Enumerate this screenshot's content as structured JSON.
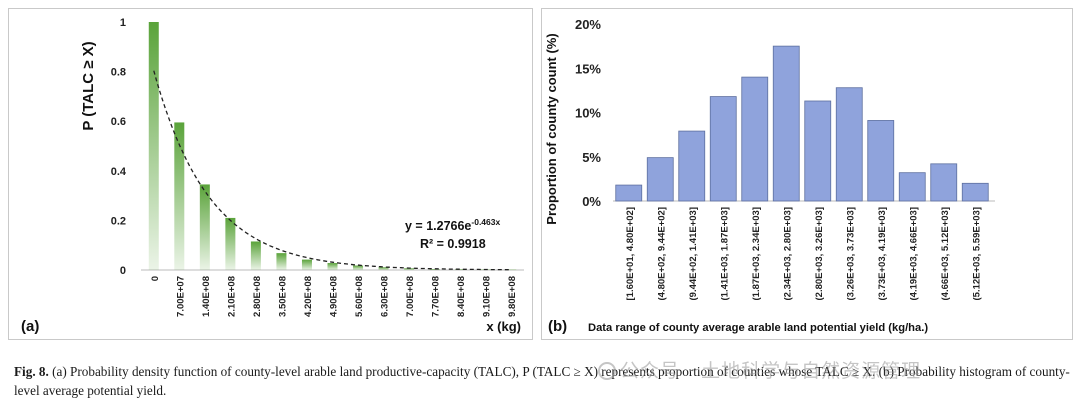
{
  "chart_data": [
    {
      "panel": "(a)",
      "type": "bar",
      "ylabel": "P (TALC ≥ X)",
      "xlabel": "x (kg)",
      "ylim": [
        0,
        1
      ],
      "yticks": [
        "0",
        "0.2",
        "0.4",
        "0.6",
        "0.8",
        "1"
      ],
      "categories": [
        "0",
        "7.00E+07",
        "1.40E+08",
        "2.10E+08",
        "2.80E+08",
        "3.50E+08",
        "4.20E+08",
        "4.90E+08",
        "5.60E+08",
        "6.30E+08",
        "7.00E+08",
        "7.70E+08",
        "8.40E+08",
        "9.10E+08",
        "9.80E+08"
      ],
      "values": [
        1.0,
        0.595,
        0.345,
        0.21,
        0.115,
        0.068,
        0.042,
        0.028,
        0.018,
        0.011,
        0.007,
        0.004,
        0.003,
        0.002,
        0.001
      ],
      "fit": {
        "coefficient": 1.2766,
        "exponent": -0.463,
        "equation": "y = 1.2766e",
        "equation_exp": "-0.463x",
        "r2": "R² = 0.9918"
      },
      "bar_color": "#5aa33a"
    },
    {
      "panel": "(b)",
      "type": "bar",
      "ylabel": "Proportion of county count (%)",
      "xlabel": "Data range of county average arable land potential yield (kg/ha.)",
      "ylim": [
        0,
        20
      ],
      "yticks": [
        "0%",
        "5%",
        "10%",
        "15%",
        "20%"
      ],
      "categories": [
        "[1.60E+01, 4.80E+02]",
        "(4.80E+02, 9.44E+02]",
        "(9.44E+02, 1.41E+03]",
        "(1.41E+03, 1.87E+03]",
        "(1.87E+03, 2.34E+03]",
        "(2.34E+03, 2.80E+03]",
        "(2.80E+03, 3.26E+03]",
        "(3.26E+03, 3.73E+03]",
        "(3.73E+03, 4.19E+03]",
        "(4.19E+03, 4.66E+03]",
        "(4.66E+03, 5.12E+03]",
        "(5.12E+03, 5.59E+03]"
      ],
      "values": [
        1.8,
        4.9,
        7.9,
        11.8,
        14.0,
        17.5,
        11.3,
        12.8,
        9.1,
        3.2,
        4.2,
        2.0
      ],
      "bar_color": "#8fa3dc"
    }
  ],
  "caption": {
    "fig_label": "Fig. 8.",
    "text": "(a) Probability density function of county-level arable land productive-capacity (TALC), P (TALC ≥ X) represents proportion of counties whose TALC ≥ X. (b) Probability histogram of county-level average potential yield."
  },
  "watermark": "公众号 · 土地科学与自然资源管理"
}
